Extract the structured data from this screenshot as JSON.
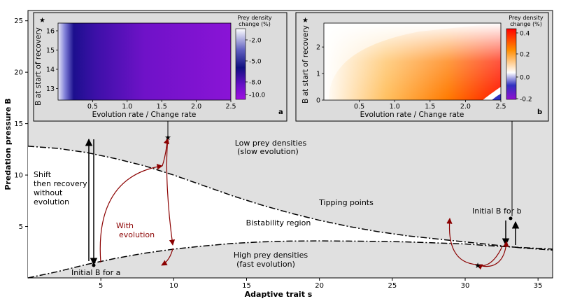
{
  "chart_data": {
    "type": "line",
    "main": {
      "xlabel": "Adaptive trait s",
      "ylabel": "Predation pressure B",
      "xlim": [
        0,
        36
      ],
      "ylim": [
        0,
        26
      ],
      "xticks": [
        5,
        10,
        15,
        20,
        25,
        30,
        35
      ],
      "yticks": [
        5,
        10,
        15,
        20,
        25
      ],
      "upper_curve": {
        "name": "Tipping points (upper)",
        "x": [
          0,
          2,
          4,
          6,
          8,
          10,
          12,
          14,
          16,
          18,
          20,
          22,
          24,
          26,
          28,
          30,
          32,
          34,
          36
        ],
        "y": [
          12.8,
          12.6,
          12.2,
          11.6,
          10.9,
          10.0,
          9.0,
          8.0,
          7.1,
          6.3,
          5.6,
          5.0,
          4.5,
          4.1,
          3.8,
          3.5,
          3.2,
          2.9,
          2.7
        ]
      },
      "lower_curve": {
        "name": "Tipping points (lower)",
        "x": [
          0,
          2,
          4,
          6,
          8,
          10,
          12,
          14,
          16,
          18,
          20,
          22,
          24,
          26,
          28,
          30,
          32,
          34,
          36
        ],
        "y": [
          0.0,
          0.6,
          1.3,
          1.9,
          2.4,
          2.8,
          3.1,
          3.35,
          3.5,
          3.58,
          3.6,
          3.58,
          3.55,
          3.5,
          3.4,
          3.3,
          3.1,
          2.95,
          2.8
        ]
      },
      "labels": {
        "low_region_1": "Low prey densities",
        "low_region_2": "(slow evolution)",
        "tipping": "Tipping points",
        "bistability": "Bistability region",
        "high_region_1": "High prey densities",
        "high_region_2": "(fast evolution)",
        "shift_1": "Shift",
        "shift_2": "then recovery",
        "shift_3": "without",
        "shift_4": "evolution",
        "with_1": "With",
        "with_2": "evolution",
        "initial_a": "Initial B for a",
        "initial_b": "Initial B for b"
      }
    },
    "inset_a": {
      "panel": "a",
      "type": "heatmap",
      "xlabel": "Evolution rate / Change rate",
      "ylabel": "B at start of recovery",
      "star": "★",
      "xticks": [
        "0.5",
        "1.0",
        "1.5",
        "2.0",
        "2.5"
      ],
      "yticks": [
        "13",
        "14",
        "15",
        "16"
      ],
      "colorbar_title_1": "Prey density",
      "colorbar_title_2": "change (%)",
      "colorbar_ticks": [
        "-2.0",
        "-5.0",
        "-8.0",
        "-10.0"
      ]
    },
    "inset_b": {
      "panel": "b",
      "type": "heatmap",
      "xlabel": "Evolution rate / Change rate",
      "ylabel": "B at start of recovery",
      "star": "★",
      "xticks": [
        "0.5",
        "1.0",
        "1.5",
        "2.0",
        "2.5"
      ],
      "yticks": [
        "0",
        "1",
        "2"
      ],
      "colorbar_title_1": "Prey density",
      "colorbar_title_2": "change (%)",
      "colorbar_ticks": [
        "0.4",
        "0.2",
        "0.0",
        "-0.2"
      ]
    }
  }
}
